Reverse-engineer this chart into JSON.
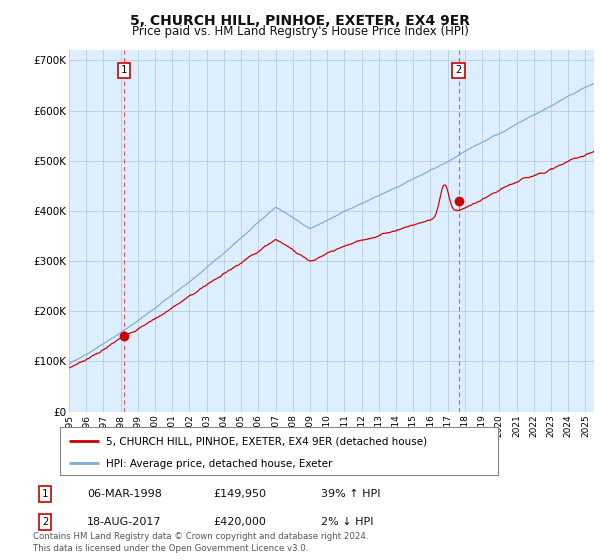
{
  "title": "5, CHURCH HILL, PINHOE, EXETER, EX4 9ER",
  "subtitle": "Price paid vs. HM Land Registry's House Price Index (HPI)",
  "ylabel_ticks": [
    "£0",
    "£100K",
    "£200K",
    "£300K",
    "£400K",
    "£500K",
    "£600K",
    "£700K"
  ],
  "ylim": [
    0,
    720000
  ],
  "xlim_start": 1995.0,
  "xlim_end": 2025.5,
  "sale1_date": 1998.18,
  "sale1_price": 149950,
  "sale1_label": "1",
  "sale2_date": 2017.63,
  "sale2_price": 420000,
  "sale2_label": "2",
  "red_line_color": "#cc0000",
  "blue_line_color": "#7aacdc",
  "dashed_line_color": "#ee3333",
  "plot_bg_color": "#ddeeff",
  "background_color": "#ffffff",
  "grid_color": "#bbccdd",
  "legend1_text": "5, CHURCH HILL, PINHOE, EXETER, EX4 9ER (detached house)",
  "legend2_text": "HPI: Average price, detached house, Exeter",
  "table_row1": [
    "1",
    "06-MAR-1998",
    "£149,950",
    "39% ↑ HPI"
  ],
  "table_row2": [
    "2",
    "18-AUG-2017",
    "£420,000",
    "2% ↓ HPI"
  ],
  "footnote": "Contains HM Land Registry data © Crown copyright and database right 2024.\nThis data is licensed under the Open Government Licence v3.0.",
  "title_fontsize": 10,
  "subtitle_fontsize": 8.5,
  "tick_fontsize": 7.5
}
